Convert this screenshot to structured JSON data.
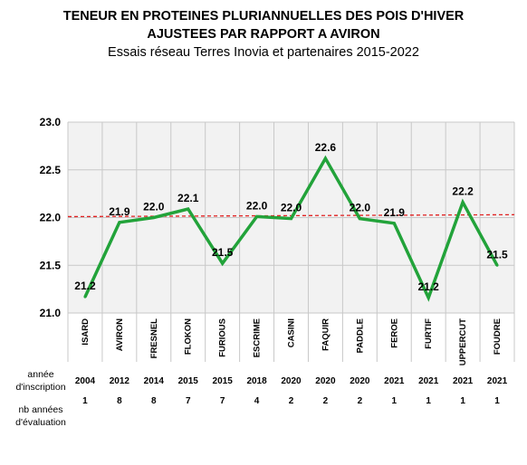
{
  "header": {
    "title_line1": "TENEUR EN PROTEINES PLURIANNUELLES DES POIS D'HIVER",
    "title_line2": "AJUSTEES PAR RAPPORT A AVIRON",
    "subtitle": "Essais réseau Terres Inovia et partenaires 2015-2022"
  },
  "colors": {
    "line": "#22a33a",
    "reference": "#e02020",
    "plot_bg": "#f2f2f2",
    "grid": "#c8c8c8"
  },
  "table": {
    "year_label_line1": "année",
    "year_label_line2": "d'inscription",
    "count_label_line1": "nb années",
    "count_label_line2": "d'évaluation"
  },
  "chart_data": {
    "type": "line",
    "categories": [
      "ISARD",
      "AVIRON",
      "FRESNEL",
      "FLOKON",
      "FURIOUS",
      "ESCRIME",
      "CASINI",
      "FAQUIR",
      "PADDLE",
      "FEROE",
      "FURTIF",
      "UPPERCUT",
      "FOUDRE"
    ],
    "values": [
      21.17,
      21.95,
      22.0,
      22.09,
      21.52,
      22.01,
      21.99,
      22.62,
      21.99,
      21.94,
      21.16,
      22.16,
      21.5
    ],
    "data_labels": [
      "21.2",
      "21.9",
      "22.0",
      "22.1",
      "21.5",
      "22.0",
      "22.0",
      "22.6",
      "22.0",
      "21.9",
      "21.2",
      "22.2",
      "21.5"
    ],
    "reference_line": {
      "y_start": 22.01,
      "y_end": 22.03,
      "style": "dashed"
    },
    "ylim": [
      21.0,
      23.0
    ],
    "yticks": [
      "21.0",
      "21.5",
      "22.0",
      "22.5",
      "23.0"
    ],
    "ytick_values": [
      21.0,
      21.5,
      22.0,
      22.5,
      23.0
    ],
    "year_inscription": [
      "2004",
      "2012",
      "2014",
      "2015",
      "2015",
      "2018",
      "2020",
      "2020",
      "2020",
      "2021",
      "2021",
      "2021",
      "2021"
    ],
    "nb_years_evaluation": [
      "1",
      "8",
      "8",
      "7",
      "7",
      "4",
      "2",
      "2",
      "2",
      "1",
      "1",
      "1",
      "1"
    ],
    "grid": true,
    "legend": "none"
  }
}
